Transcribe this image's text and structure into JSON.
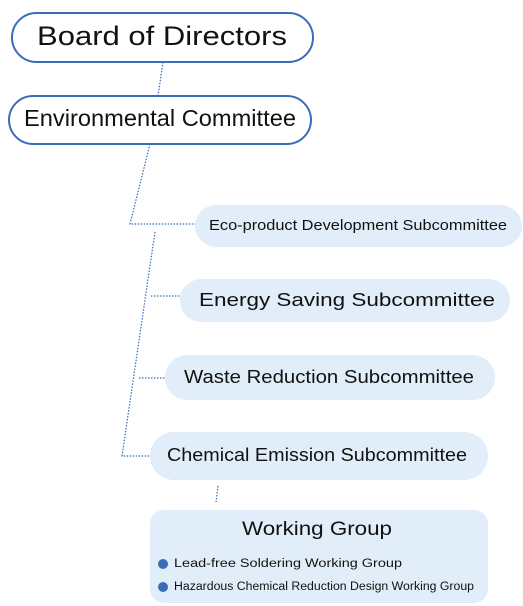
{
  "nodes": [
    {
      "label": "Board of Directors"
    },
    {
      "label": "Environmental Committee"
    },
    {
      "label": "Eco-product Development Subcommittee"
    },
    {
      "label": "Energy Saving Subcommittee"
    },
    {
      "label": "Waste Reduction Subcommittee"
    },
    {
      "label": "Chemical Emission Subcommittee"
    }
  ],
  "working_group": {
    "title": "Working Group",
    "items": [
      "Lead-free Soldering Working Group",
      "Hazardous Chemical Reduction Design Working Group"
    ]
  }
}
